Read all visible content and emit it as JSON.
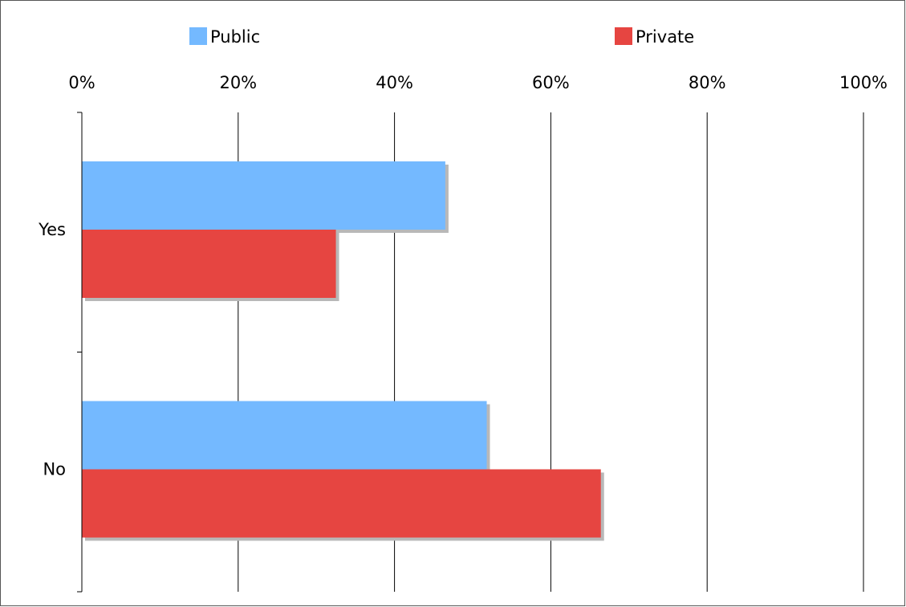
{
  "chart_data": {
    "type": "bar",
    "orientation": "horizontal",
    "categories": [
      "Yes",
      "No"
    ],
    "series": [
      {
        "name": "Public",
        "values": [
          46.5,
          51.8
        ],
        "color": "#74b9ff"
      },
      {
        "name": "Private",
        "values": [
          32.5,
          66.4
        ],
        "color": "#e64541"
      }
    ],
    "x_ticks": [
      "0%",
      "20%",
      "40%",
      "60%",
      "80%",
      "100%"
    ],
    "xlim": [
      0,
      100
    ],
    "x_axis_position": "top",
    "grid": true,
    "legend_position": "top",
    "bar_shadow": true
  }
}
